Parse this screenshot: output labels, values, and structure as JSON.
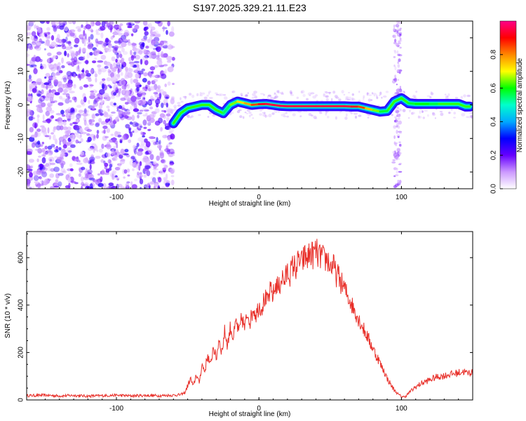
{
  "chart_data": [
    {
      "type": "heatmap",
      "title": "S197.2025.329.21.11.E23",
      "xlabel": "Height of straight line (km)",
      "ylabel": "Frequency (Hz)",
      "xlim": [
        -163,
        150
      ],
      "ylim": [
        -25,
        25
      ],
      "xticks": [
        -100,
        0,
        100
      ],
      "yticks": [
        -20,
        -10,
        0,
        10,
        20
      ],
      "noise_region_x": [
        -163,
        -60
      ],
      "noise_column_x": [
        97
      ],
      "ridge": {
        "x": [
          -60,
          -55,
          -50,
          -45,
          -40,
          -35,
          -30,
          -25,
          -20,
          -15,
          -10,
          -5,
          0,
          5,
          10,
          15,
          20,
          25,
          30,
          35,
          40,
          45,
          50,
          55,
          60,
          65,
          70,
          75,
          80,
          85,
          90,
          95,
          100,
          105,
          110,
          115,
          120,
          125,
          130,
          135,
          140,
          145,
          148
        ],
        "y": [
          -5.5,
          -2.5,
          -1,
          -0.5,
          0,
          0,
          -1.5,
          -2.5,
          0,
          1,
          0.5,
          0,
          0.2,
          0.3,
          0,
          -0.3,
          -0.4,
          -0.4,
          -0.4,
          -0.4,
          -0.4,
          -0.4,
          -0.4,
          -0.4,
          -0.4,
          -0.5,
          -0.5,
          -1,
          -1.5,
          -2,
          -1.8,
          1,
          2,
          0.5,
          0.3,
          0.3,
          0.3,
          0.3,
          0.3,
          0.3,
          0.3,
          -0.5,
          -0.5
        ],
        "amplitude": [
          0.4,
          0.4,
          0.45,
          0.5,
          0.55,
          0.5,
          0.45,
          0.5,
          0.6,
          0.7,
          0.75,
          0.8,
          0.9,
          0.95,
          0.95,
          0.95,
          0.95,
          0.95,
          0.95,
          0.95,
          0.95,
          0.95,
          0.95,
          0.95,
          0.95,
          0.95,
          0.9,
          0.8,
          0.7,
          0.6,
          0.55,
          0.5,
          0.5,
          0.55,
          0.6,
          0.6,
          0.6,
          0.55,
          0.5,
          0.45,
          0.45,
          0.4,
          0.4
        ]
      },
      "colorbar": {
        "label": "Normalized spectral amplitude",
        "range": [
          0,
          1
        ],
        "ticks": [
          "0.0",
          "0.2",
          "0.4",
          "0.6",
          "0.8"
        ],
        "colors": [
          "#ffffff",
          "#cc99ff",
          "#6600ff",
          "#0000ff",
          "#00aaff",
          "#00ffcc",
          "#00ff00",
          "#ffff00",
          "#ff8800",
          "#ff0000",
          "#ff0088"
        ]
      }
    },
    {
      "type": "line",
      "xlabel": "Height of straight line (km)",
      "ylabel": "SNR (10 * v/v)",
      "xlim": [
        -163,
        150
      ],
      "ylim": [
        0,
        710
      ],
      "xticks": [
        -100,
        0,
        100
      ],
      "yticks": [
        0,
        200,
        400,
        600
      ],
      "line_color": "#e8302a",
      "series": [
        {
          "name": "SNR",
          "x": [
            -163,
            -150,
            -140,
            -130,
            -120,
            -110,
            -100,
            -90,
            -80,
            -70,
            -60,
            -55,
            -52,
            -50,
            -48,
            -46,
            -44,
            -42,
            -40,
            -38,
            -36,
            -34,
            -32,
            -30,
            -28,
            -26,
            -24,
            -22,
            -20,
            -18,
            -16,
            -14,
            -12,
            -10,
            -8,
            -6,
            -4,
            -2,
            0,
            2,
            4,
            6,
            8,
            10,
            12,
            14,
            16,
            18,
            20,
            22,
            24,
            26,
            28,
            30,
            32,
            34,
            36,
            38,
            40,
            42,
            44,
            46,
            48,
            50,
            52,
            54,
            56,
            58,
            60,
            62,
            64,
            66,
            68,
            70,
            72,
            74,
            76,
            78,
            80,
            82,
            84,
            86,
            88,
            90,
            92,
            94,
            96,
            98,
            100,
            102,
            104,
            106,
            108,
            110,
            112,
            114,
            116,
            118,
            120,
            122,
            124,
            126,
            128,
            130,
            132,
            134,
            136,
            138,
            140,
            142,
            144,
            146,
            148,
            150
          ],
          "y": [
            18,
            20,
            17,
            19,
            16,
            18,
            20,
            17,
            19,
            18,
            20,
            22,
            30,
            60,
            90,
            55,
            110,
            70,
            150,
            120,
            190,
            140,
            230,
            170,
            260,
            200,
            290,
            230,
            310,
            260,
            330,
            280,
            350,
            300,
            370,
            330,
            390,
            360,
            400,
            390,
            430,
            410,
            460,
            440,
            490,
            470,
            520,
            500,
            540,
            530,
            570,
            555,
            590,
            575,
            605,
            595,
            620,
            610,
            630,
            600,
            610,
            585,
            600,
            560,
            570,
            530,
            520,
            490,
            470,
            440,
            420,
            390,
            370,
            340,
            320,
            290,
            270,
            240,
            220,
            190,
            170,
            140,
            120,
            90,
            70,
            50,
            35,
            22,
            15,
            12,
            22,
            35,
            45,
            55,
            62,
            70,
            75,
            80,
            85,
            90,
            95,
            98,
            100,
            102,
            105,
            108,
            110,
            112,
            115,
            118,
            120,
            112,
            116,
            118
          ]
        }
      ]
    }
  ]
}
